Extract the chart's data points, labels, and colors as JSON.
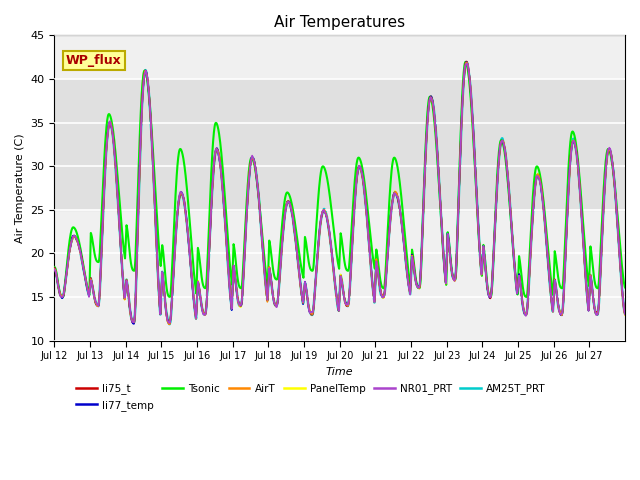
{
  "title": "Air Temperatures",
  "xlabel": "Time",
  "ylabel": "Air Temperature (C)",
  "ylim": [
    10,
    45
  ],
  "series_cfg": {
    "li75_t": {
      "color": "#cc0000",
      "lw": 1.2,
      "zorder": 5
    },
    "li77_temp": {
      "color": "#0000cc",
      "lw": 1.2,
      "zorder": 5
    },
    "Tsonic": {
      "color": "#00ee00",
      "lw": 1.5,
      "zorder": 4
    },
    "AirT": {
      "color": "#ff8800",
      "lw": 1.2,
      "zorder": 5
    },
    "PanelTemp": {
      "color": "#ffff00",
      "lw": 1.2,
      "zorder": 3
    },
    "NR01_PRT": {
      "color": "#aa44cc",
      "lw": 1.2,
      "zorder": 5
    },
    "AM25T_PRT": {
      "color": "#00cccc",
      "lw": 1.8,
      "zorder": 2
    }
  },
  "legend_order": [
    "li75_t",
    "li77_temp",
    "Tsonic",
    "AirT",
    "PanelTemp",
    "NR01_PRT",
    "AM25T_PRT"
  ],
  "annotation": {
    "text": "WP_flux",
    "fontsize": 9,
    "color": "#aa0000",
    "bg_color": "#ffff99",
    "border_color": "#bbaa00"
  },
  "background_shade": {
    "ymin": 25,
    "ymax": 40,
    "color": "#e0e0e0"
  },
  "axes_bg": "#f0f0f0",
  "grid_color": "#ffffff",
  "yticks": [
    10,
    15,
    20,
    25,
    30,
    35,
    40,
    45
  ],
  "x_tick_labels": [
    "Jul 12",
    "Jul 13",
    "Jul 14",
    "Jul 15",
    "Jul 16",
    "Jul 17",
    "Jul 18",
    "Jul 19",
    "Jul 20",
    "Jul 21",
    "Jul 22",
    "Jul 23",
    "Jul 24",
    "Jul 25",
    "Jul 26",
    "Jul 27"
  ],
  "day_maxes_base": [
    22,
    35,
    41,
    27,
    32,
    31,
    26,
    25,
    30,
    27,
    38,
    42,
    33,
    29,
    33,
    32
  ],
  "day_maxes_tsonic": [
    23,
    36,
    41,
    32,
    35,
    31,
    27,
    30,
    31,
    31,
    38,
    42,
    33,
    30,
    34,
    32
  ],
  "day_mins_base": [
    15,
    14,
    12,
    12,
    13,
    14,
    14,
    13,
    14,
    15,
    16,
    17,
    15,
    13,
    13,
    13
  ],
  "day_mins_tsonic": [
    15,
    19,
    18,
    15,
    16,
    16,
    17,
    18,
    18,
    16,
    16,
    17,
    15,
    15,
    16,
    16
  ]
}
